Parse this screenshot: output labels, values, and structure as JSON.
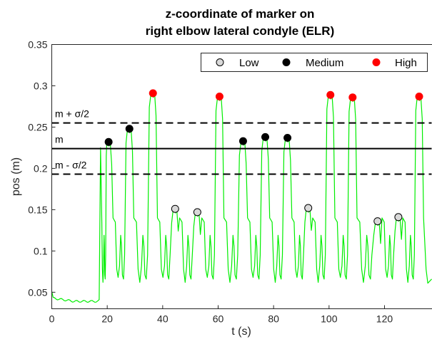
{
  "chart_data": {
    "type": "line",
    "title": [
      "z-coordinate of marker on",
      "right elbow lateral condyle (ELR)"
    ],
    "xlabel": "t (s)",
    "ylabel": "pos (m)",
    "xlim": [
      0,
      137
    ],
    "ylim": [
      0.03,
      0.35
    ],
    "xticks": [
      0,
      20,
      40,
      60,
      80,
      100,
      120
    ],
    "xtick_labels": [
      "0",
      "20",
      "40",
      "60",
      "80",
      "100",
      "120"
    ],
    "yticks": [
      0.05,
      0.1,
      0.15,
      0.2,
      0.25,
      0.3,
      0.35
    ],
    "ytick_labels": [
      "0.05",
      "0.1",
      "0.15",
      "0.2",
      "0.25",
      "0.3",
      "0.35"
    ],
    "grid": false,
    "signal_color": "#00ee00",
    "reference_lines": [
      {
        "label": "m + σ/2",
        "y": 0.255,
        "style": "dashed"
      },
      {
        "label": "m",
        "y": 0.224,
        "style": "solid"
      },
      {
        "label": "m - σ/2",
        "y": 0.193,
        "style": "dashed"
      }
    ],
    "legend": {
      "position": "top-right",
      "entries": [
        {
          "name": "Low",
          "color": "#d9d9d9"
        },
        {
          "name": "Medium",
          "color": "#000000"
        },
        {
          "name": "High",
          "color": "#ff0000"
        }
      ]
    },
    "series": [
      {
        "name": "Low",
        "color": "#d9d9d9",
        "points": [
          [
            44.5,
            0.151
          ],
          [
            52.5,
            0.147
          ],
          [
            92.5,
            0.152
          ],
          [
            117.5,
            0.136
          ],
          [
            125,
            0.141
          ]
        ]
      },
      {
        "name": "Medium",
        "color": "#000000",
        "points": [
          [
            20.5,
            0.232
          ],
          [
            28,
            0.248
          ],
          [
            69,
            0.233
          ],
          [
            77,
            0.238
          ],
          [
            85,
            0.237
          ]
        ]
      },
      {
        "name": "High",
        "color": "#ff0000",
        "points": [
          [
            36.5,
            0.291
          ],
          [
            60.5,
            0.287
          ],
          [
            100.5,
            0.289
          ],
          [
            108.5,
            0.286
          ],
          [
            132.5,
            0.287
          ]
        ]
      }
    ]
  }
}
